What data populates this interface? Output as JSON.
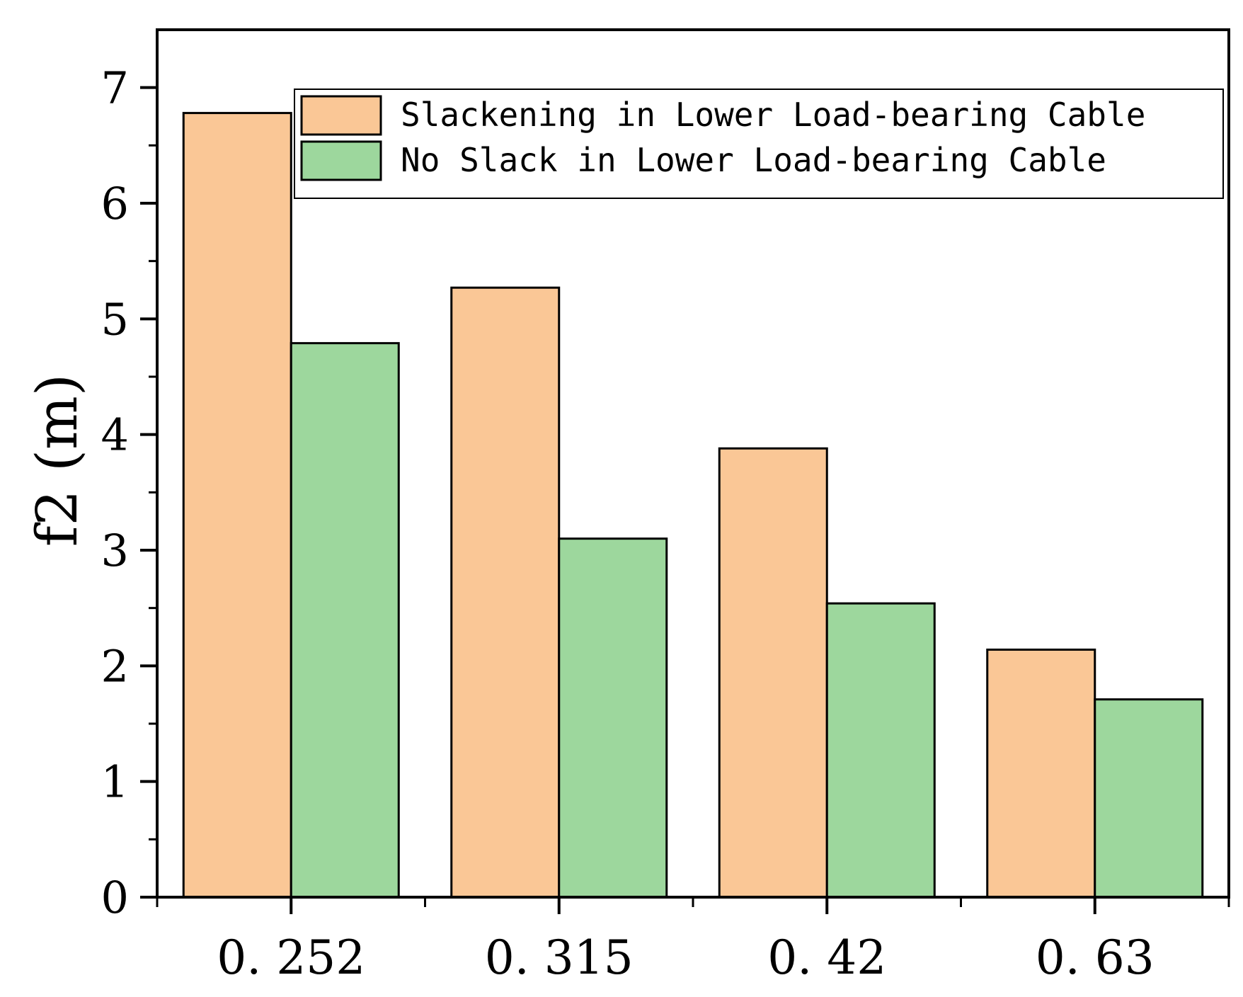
{
  "chart_data": {
    "type": "bar",
    "title": "",
    "xlabel": "",
    "ylabel": "f2 (m)",
    "ylim": [
      0,
      7.5
    ],
    "yticks": [
      0,
      1,
      2,
      3,
      4,
      5,
      6,
      7
    ],
    "ytick_labels": [
      "0",
      "1",
      "2",
      "3",
      "4",
      "5",
      "6",
      "7"
    ],
    "categories": [
      "0.252",
      "0.315",
      "0.42",
      "0.63"
    ],
    "category_labels": [
      "0. 252",
      "0. 315",
      "0. 42",
      "0. 63"
    ],
    "series": [
      {
        "name": "Slackening in Lower Load-bearing Cable",
        "color": "#FAC796",
        "values": [
          6.78,
          5.27,
          3.88,
          2.14
        ]
      },
      {
        "name": "No Slack in Lower Load-bearing Cable",
        "color": "#9DD79D",
        "values": [
          4.79,
          3.1,
          2.54,
          1.71
        ]
      }
    ],
    "legend_position": "top-right",
    "grid": false
  }
}
